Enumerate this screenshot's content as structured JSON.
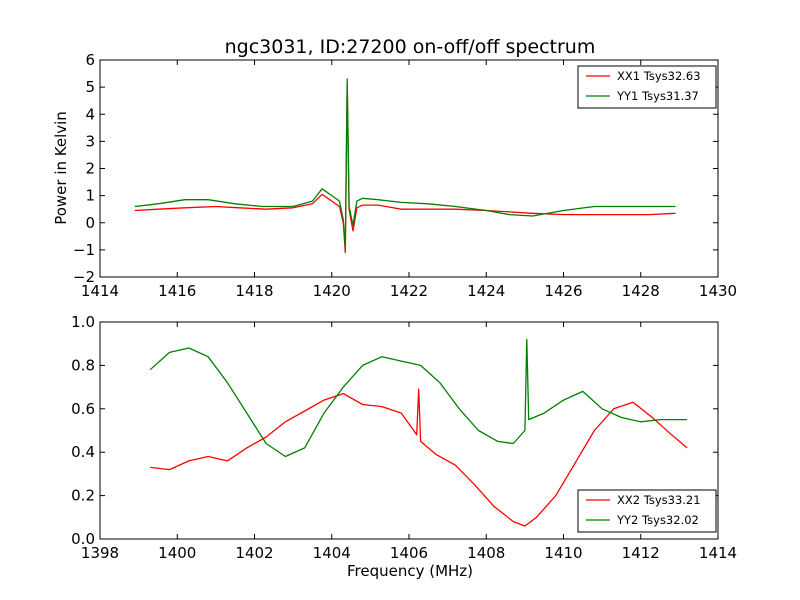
{
  "chart_data": [
    {
      "type": "line",
      "title": "ngc3031, ID:27200 on-off/off spectrum",
      "xlabel": "",
      "ylabel": "Power in Kelvin",
      "xlim": [
        1414,
        1430
      ],
      "ylim": [
        -2,
        6
      ],
      "xticks": [
        1414,
        1416,
        1418,
        1420,
        1422,
        1424,
        1426,
        1428,
        1430
      ],
      "yticks": [
        -2,
        -1,
        0,
        1,
        2,
        3,
        4,
        5,
        6
      ],
      "grid": false,
      "legend_position": "top-right",
      "series": [
        {
          "name": "XX1 Tsys32.63",
          "color": "#ff0000",
          "x": [
            1414.9,
            1415.5,
            1416.2,
            1417.0,
            1417.6,
            1418.3,
            1419.0,
            1419.5,
            1419.75,
            1420.0,
            1420.2,
            1420.3,
            1420.35,
            1420.4,
            1420.45,
            1420.55,
            1420.65,
            1420.8,
            1421.2,
            1421.8,
            1422.5,
            1423.2,
            1424.0,
            1424.6,
            1425.2,
            1426.0,
            1426.8,
            1427.5,
            1428.2,
            1428.9
          ],
          "y": [
            0.45,
            0.5,
            0.55,
            0.6,
            0.55,
            0.5,
            0.55,
            0.7,
            1.05,
            0.8,
            0.6,
            0.0,
            -1.1,
            5.1,
            0.5,
            -0.3,
            0.55,
            0.65,
            0.65,
            0.5,
            0.5,
            0.5,
            0.45,
            0.4,
            0.35,
            0.3,
            0.3,
            0.3,
            0.3,
            0.35
          ]
        },
        {
          "name": "YY1 Tsys31.37",
          "color": "#008000",
          "x": [
            1414.9,
            1415.5,
            1416.2,
            1416.8,
            1417.5,
            1418.2,
            1419.0,
            1419.5,
            1419.75,
            1420.0,
            1420.2,
            1420.3,
            1420.35,
            1420.4,
            1420.45,
            1420.55,
            1420.65,
            1420.8,
            1421.2,
            1421.8,
            1422.5,
            1423.2,
            1424.0,
            1424.6,
            1425.2,
            1426.0,
            1426.8,
            1427.5,
            1428.2,
            1428.9
          ],
          "y": [
            0.6,
            0.7,
            0.85,
            0.85,
            0.7,
            0.6,
            0.6,
            0.8,
            1.25,
            1.0,
            0.8,
            0.1,
            -0.9,
            5.3,
            0.6,
            -0.1,
            0.8,
            0.9,
            0.85,
            0.75,
            0.7,
            0.6,
            0.45,
            0.3,
            0.25,
            0.45,
            0.6,
            0.6,
            0.6,
            0.6
          ]
        }
      ]
    },
    {
      "type": "line",
      "title": "",
      "xlabel": "Frequency (MHz)",
      "ylabel": "",
      "xlim": [
        1398,
        1414
      ],
      "ylim": [
        0.0,
        1.0
      ],
      "xticks": [
        1398,
        1400,
        1402,
        1404,
        1406,
        1408,
        1410,
        1412,
        1414
      ],
      "yticks": [
        0.0,
        0.2,
        0.4,
        0.6,
        0.8,
        1.0
      ],
      "ytick_labels": [
        "0.0",
        "0.2",
        "0.4",
        "0.6",
        "0.8",
        "1.0"
      ],
      "grid": false,
      "legend_position": "bottom-right",
      "series": [
        {
          "name": "XX2 Tsys33.21",
          "color": "#ff0000",
          "x": [
            1399.3,
            1399.8,
            1400.3,
            1400.8,
            1401.3,
            1401.8,
            1402.3,
            1402.8,
            1403.3,
            1403.8,
            1404.3,
            1404.8,
            1405.3,
            1405.8,
            1406.2,
            1406.25,
            1406.3,
            1406.7,
            1407.2,
            1407.7,
            1408.2,
            1408.7,
            1409.0,
            1409.3,
            1409.8,
            1410.3,
            1410.8,
            1411.3,
            1411.8,
            1412.3,
            1412.8,
            1413.2
          ],
          "y": [
            0.33,
            0.32,
            0.36,
            0.38,
            0.36,
            0.42,
            0.47,
            0.54,
            0.59,
            0.64,
            0.67,
            0.62,
            0.61,
            0.58,
            0.48,
            0.69,
            0.45,
            0.39,
            0.34,
            0.25,
            0.15,
            0.08,
            0.06,
            0.1,
            0.2,
            0.35,
            0.5,
            0.6,
            0.63,
            0.56,
            0.48,
            0.42
          ]
        },
        {
          "name": "YY2 Tsys32.02",
          "color": "#008000",
          "x": [
            1399.3,
            1399.8,
            1400.3,
            1400.8,
            1401.3,
            1401.8,
            1402.3,
            1402.8,
            1403.3,
            1403.8,
            1404.3,
            1404.8,
            1405.3,
            1405.8,
            1406.3,
            1406.8,
            1407.3,
            1407.8,
            1408.3,
            1408.7,
            1409.0,
            1409.05,
            1409.1,
            1409.5,
            1410.0,
            1410.5,
            1411.0,
            1411.5,
            1412.0,
            1412.5,
            1413.2
          ],
          "y": [
            0.78,
            0.86,
            0.88,
            0.84,
            0.72,
            0.58,
            0.44,
            0.38,
            0.42,
            0.58,
            0.7,
            0.8,
            0.84,
            0.82,
            0.8,
            0.72,
            0.6,
            0.5,
            0.45,
            0.44,
            0.5,
            0.92,
            0.55,
            0.58,
            0.64,
            0.68,
            0.6,
            0.56,
            0.54,
            0.55,
            0.55
          ]
        }
      ]
    }
  ]
}
